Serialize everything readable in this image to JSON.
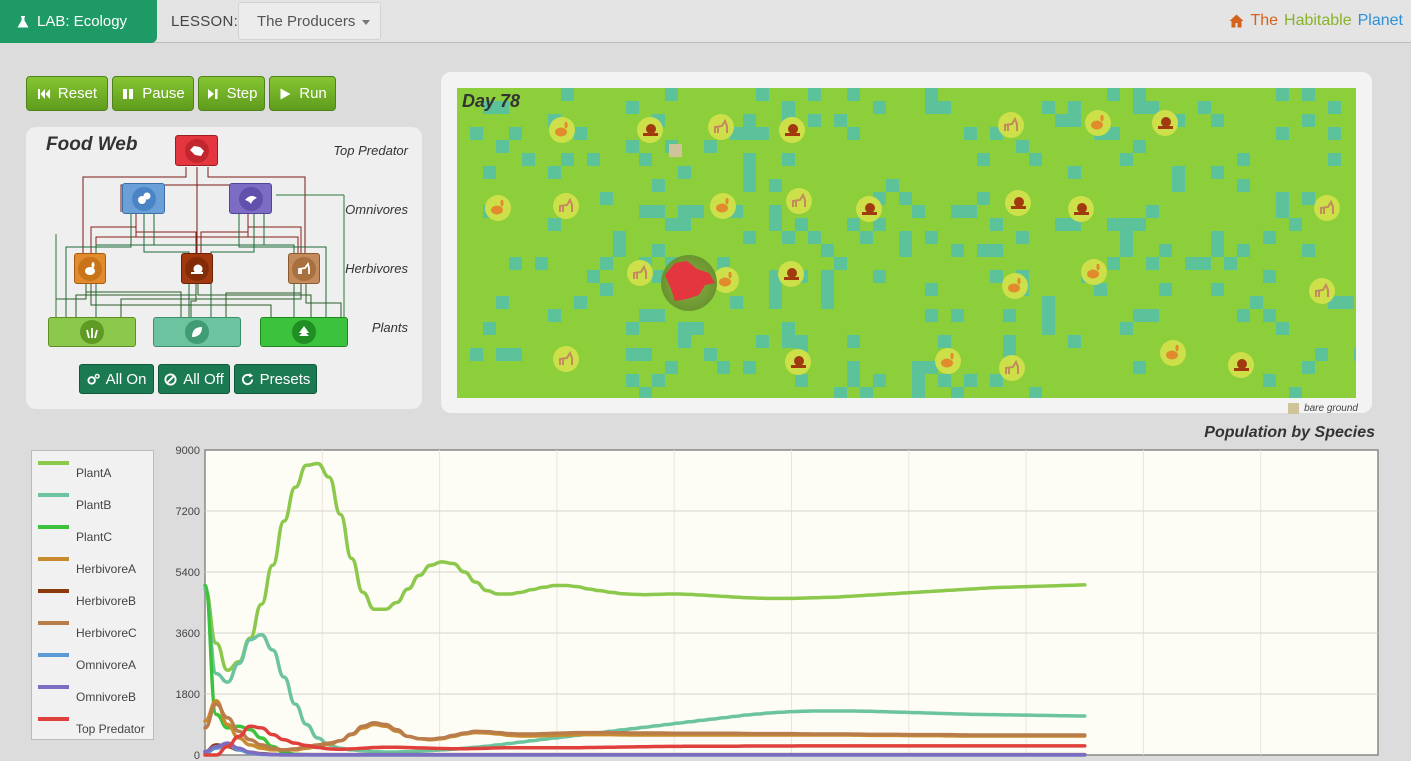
{
  "header": {
    "lab_label": "LAB: Ecology",
    "lesson_label": "LESSON:",
    "lesson_selected": "The Producers",
    "brand": {
      "word1": "The",
      "word2": "Habitable",
      "word3": "Planet"
    }
  },
  "controls": {
    "reset": "Reset",
    "pause": "Pause",
    "step": "Step",
    "run": "Run"
  },
  "food_web": {
    "title": "Food Web",
    "tiers": [
      "Top Predator",
      "Omnivores",
      "Herbivores",
      "Plants"
    ],
    "buttons": {
      "all_on": "All On",
      "all_off": "All Off",
      "presets": "Presets"
    }
  },
  "simulation": {
    "day_label": "Day 78",
    "bare_ground_label": "bare ground"
  },
  "chart_data": {
    "type": "line",
    "title": "Population by Species",
    "xlabel": "",
    "ylabel": "",
    "ylim": [
      0,
      9000
    ],
    "y_ticks": [
      0,
      1800,
      3600,
      5400,
      7200,
      9000
    ],
    "x": [
      0,
      1,
      2,
      3,
      4,
      5,
      6,
      7,
      8,
      9,
      10,
      11,
      12,
      13,
      14,
      15,
      16,
      17,
      18,
      19,
      20,
      21,
      22,
      23,
      24,
      25,
      26,
      27,
      28,
      29,
      30,
      31,
      32,
      33,
      34,
      35,
      36,
      37,
      38,
      39,
      40,
      41,
      42,
      43,
      44,
      45,
      46,
      47,
      48,
      49,
      50,
      51,
      52,
      53,
      54,
      55,
      56,
      57,
      58,
      59,
      60,
      61,
      62,
      63,
      64,
      65,
      66,
      67,
      68,
      69,
      70,
      71,
      72,
      73,
      74,
      75,
      76,
      77,
      78
    ],
    "x_max": 104,
    "legend_position": "left",
    "series": [
      {
        "name": "PlantA",
        "color": "#8cc84b",
        "values": [
          4900,
          3300,
          2500,
          2750,
          3450,
          4450,
          5600,
          6900,
          7900,
          8550,
          8600,
          8200,
          7100,
          5800,
          4800,
          4300,
          4300,
          4500,
          4900,
          5300,
          5600,
          5700,
          5650,
          5400,
          5100,
          4850,
          4750,
          4750,
          4800,
          4880,
          4950,
          5000,
          5000,
          4970,
          4900,
          4850,
          4800,
          4760,
          4740,
          4730,
          4740,
          4750,
          4750,
          4740,
          4720,
          4700,
          4680,
          4660,
          4640,
          4630,
          4620,
          4620,
          4620,
          4630,
          4640,
          4650,
          4660,
          4680,
          4700,
          4720,
          4740,
          4760,
          4780,
          4800,
          4820,
          4840,
          4860,
          4880,
          4900,
          4920,
          4940,
          4950,
          4960,
          4970,
          4980,
          4990,
          5000,
          5010,
          5020
        ]
      },
      {
        "name": "PlantB",
        "color": "#6cc3a0",
        "values": [
          4900,
          2400,
          2150,
          2700,
          3400,
          3550,
          3100,
          2300,
          1500,
          900,
          500,
          300,
          200,
          150,
          120,
          100,
          90,
          90,
          100,
          110,
          130,
          150,
          170,
          200,
          230,
          260,
          300,
          340,
          380,
          420,
          460,
          500,
          540,
          580,
          620,
          660,
          700,
          740,
          780,
          820,
          860,
          900,
          940,
          980,
          1020,
          1060,
          1100,
          1140,
          1180,
          1210,
          1240,
          1260,
          1280,
          1290,
          1300,
          1300,
          1300,
          1300,
          1295,
          1290,
          1280,
          1270,
          1260,
          1250,
          1240,
          1230,
          1220,
          1210,
          1200,
          1195,
          1190,
          1185,
          1180,
          1175,
          1170,
          1165,
          1160,
          1155,
          1150
        ]
      },
      {
        "name": "PlantC",
        "color": "#3cc23c",
        "values": [
          5000,
          1200,
          800,
          850,
          750,
          500,
          250,
          80,
          20,
          10,
          5,
          5,
          5,
          5,
          5,
          5,
          5,
          5,
          5,
          5,
          5,
          5,
          5,
          5,
          5,
          5,
          5,
          5,
          5,
          5,
          5,
          5,
          5,
          5,
          5,
          5,
          5,
          5,
          5,
          5,
          5,
          5,
          5,
          5,
          5,
          5,
          5,
          5,
          5,
          5,
          5,
          5,
          5,
          5,
          5,
          5,
          5,
          5,
          5,
          5,
          5,
          5,
          5,
          5,
          5,
          5,
          5,
          5,
          5,
          5,
          5,
          5,
          5,
          5,
          5,
          5,
          5,
          5,
          5
        ]
      },
      {
        "name": "HerbivoreA",
        "color": "#c98a2e",
        "values": [
          1000,
          1600,
          900,
          500,
          300,
          200,
          150,
          150,
          150,
          200,
          250,
          320,
          420,
          600,
          800,
          900,
          850,
          700,
          550,
          480,
          450,
          480,
          550,
          620,
          660,
          650,
          620,
          580,
          560,
          560,
          570,
          580,
          590,
          600,
          600,
          600,
          600,
          595,
          590,
          590,
          590,
          590,
          590,
          590,
          590,
          590,
          590,
          590,
          590,
          590,
          590,
          590,
          590,
          590,
          590,
          590,
          590,
          590,
          585,
          580,
          580,
          580,
          575,
          570,
          570,
          570,
          565,
          560,
          560,
          560,
          560,
          560,
          560,
          560,
          560,
          560,
          560,
          560,
          560
        ]
      },
      {
        "name": "HerbivoreB",
        "color": "#8b3a0e",
        "values": [
          100,
          300,
          250,
          150,
          80,
          40,
          20,
          10,
          10,
          10,
          10,
          10,
          10,
          10,
          10,
          10,
          10,
          10,
          10,
          10,
          10,
          10,
          10,
          10,
          10,
          10,
          10,
          10,
          10,
          10,
          10,
          10,
          10,
          10,
          10,
          10,
          10,
          10,
          10,
          10,
          10,
          10,
          10,
          10,
          10,
          10,
          10,
          10,
          10,
          10,
          10,
          10,
          10,
          10,
          10,
          10,
          10,
          10,
          10,
          10,
          10,
          10,
          10,
          10,
          10,
          10,
          10,
          10,
          10,
          10,
          10,
          10,
          10,
          10,
          10,
          10,
          10,
          10,
          10
        ]
      },
      {
        "name": "HerbivoreC",
        "color": "#b87d4b",
        "values": [
          800,
          1500,
          1100,
          700,
          450,
          300,
          200,
          150,
          180,
          250,
          300,
          350,
          420,
          620,
          850,
          950,
          900,
          750,
          550,
          480,
          470,
          500,
          580,
          650,
          700,
          690,
          660,
          630,
          620,
          620,
          630,
          640,
          650,
          660,
          660,
          660,
          660,
          655,
          650,
          650,
          650,
          645,
          640,
          640,
          640,
          640,
          640,
          640,
          635,
          630,
          630,
          630,
          630,
          625,
          620,
          620,
          620,
          620,
          615,
          610,
          610,
          610,
          605,
          600,
          600,
          600,
          600,
          595,
          590,
          590,
          590,
          590,
          590,
          590,
          590,
          590,
          590,
          590,
          590
        ]
      },
      {
        "name": "OmnivoreA",
        "color": "#5b9bd5",
        "values": [
          50,
          200,
          300,
          150,
          60,
          20,
          10,
          5,
          5,
          5,
          5,
          5,
          5,
          5,
          5,
          5,
          5,
          5,
          5,
          5,
          5,
          5,
          5,
          5,
          5,
          5,
          5,
          5,
          5,
          5,
          5,
          5,
          5,
          5,
          5,
          5,
          5,
          5,
          5,
          5,
          5,
          5,
          5,
          5,
          5,
          5,
          5,
          5,
          5,
          5,
          5,
          5,
          5,
          5,
          5,
          5,
          5,
          5,
          5,
          5,
          5,
          5,
          5,
          5,
          5,
          5,
          5,
          5,
          5,
          5,
          5,
          5,
          5,
          5,
          5,
          5,
          5,
          5,
          5
        ]
      },
      {
        "name": "OmnivoreB",
        "color": "#7d6cc4",
        "values": [
          100,
          250,
          350,
          200,
          80,
          30,
          10,
          5,
          5,
          5,
          5,
          5,
          5,
          5,
          5,
          5,
          5,
          5,
          5,
          5,
          5,
          5,
          5,
          5,
          5,
          5,
          5,
          5,
          5,
          5,
          5,
          5,
          5,
          5,
          5,
          5,
          5,
          5,
          5,
          5,
          5,
          5,
          5,
          5,
          5,
          5,
          5,
          5,
          5,
          5,
          5,
          5,
          5,
          5,
          5,
          5,
          5,
          5,
          5,
          5,
          5,
          5,
          5,
          5,
          5,
          5,
          5,
          5,
          5,
          5,
          5,
          5,
          5,
          5,
          5,
          5,
          5,
          5,
          5
        ]
      },
      {
        "name": "Top Predator",
        "color": "#e0403c",
        "values": [
          0,
          0,
          250,
          550,
          850,
          800,
          600,
          450,
          350,
          280,
          220,
          180,
          170,
          180,
          200,
          220,
          230,
          230,
          220,
          210,
          200,
          190,
          185,
          185,
          190,
          200,
          210,
          215,
          215,
          215,
          215,
          215,
          215,
          215,
          220,
          225,
          230,
          235,
          240,
          245,
          250,
          255,
          255,
          260,
          260,
          260,
          260,
          260,
          265,
          265,
          265,
          265,
          265,
          270,
          270,
          270,
          270,
          270,
          270,
          270,
          270,
          270,
          270,
          270,
          270,
          270,
          270,
          270,
          270,
          270,
          270,
          270,
          270,
          270,
          270,
          270,
          270,
          270,
          270
        ]
      }
    ]
  },
  "colors": {
    "accent_green": "#1e9a66",
    "control_green": "#72b326",
    "ground_green": "#8ccf3a",
    "water_teal": "#5cc29a",
    "predator_red": "#e3363e"
  }
}
